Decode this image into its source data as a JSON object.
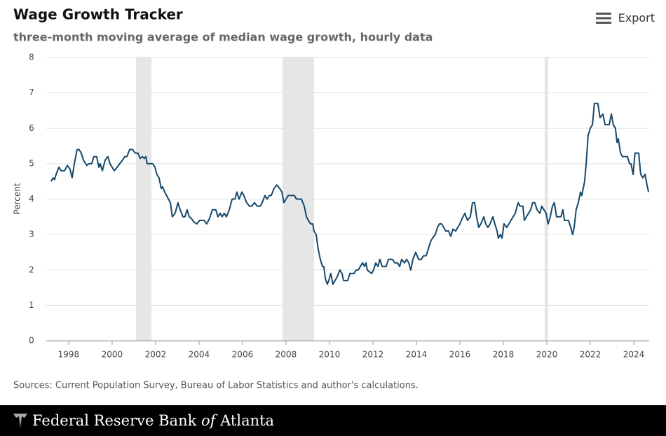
{
  "chart_data": {
    "type": "line",
    "title": "Wage Growth Tracker",
    "subtitle": "three-month moving average of median wage growth, hourly data",
    "y_label": "Percent",
    "color": "#16486b",
    "grid": true,
    "recession_color": "#e6e6e6",
    "recessions": [
      [
        2001.1,
        2001.81
      ],
      [
        2007.84,
        2009.29
      ],
      [
        2019.9,
        2020.06
      ]
    ],
    "xlim": [
      1996.97,
      2024.71
    ],
    "xticks": [
      1998,
      2000,
      2002,
      2004,
      2006,
      2008,
      2010,
      2012,
      2014,
      2016,
      2018,
      2020,
      2022,
      2024
    ],
    "ylim": [
      0,
      8
    ],
    "yticks": [
      0,
      1,
      2,
      3,
      4,
      5,
      6,
      7,
      8
    ],
    "x": [
      1997.19,
      1997.29,
      1997.35,
      1997.42,
      1997.55,
      1997.65,
      1997.81,
      1997.94,
      1998.06,
      1998.16,
      1998.26,
      1998.39,
      1998.48,
      1998.58,
      1998.68,
      1998.84,
      1998.94,
      1999.06,
      1999.16,
      1999.29,
      1999.39,
      1999.45,
      1999.55,
      1999.68,
      1999.81,
      1999.9,
      2000.1,
      2000.23,
      2000.35,
      2000.48,
      2000.58,
      2000.68,
      2000.81,
      2000.94,
      2001.06,
      2001.19,
      2001.29,
      2001.39,
      2001.48,
      2001.55,
      2001.61,
      2001.87,
      2001.97,
      2002.06,
      2002.16,
      2002.26,
      2002.32,
      2002.42,
      2002.55,
      2002.68,
      2002.77,
      2002.9,
      2003.03,
      2003.13,
      2003.26,
      2003.35,
      2003.45,
      2003.55,
      2003.65,
      2003.77,
      2003.9,
      2004.03,
      2004.23,
      2004.35,
      2004.48,
      2004.61,
      2004.77,
      2004.87,
      2004.97,
      2005.06,
      2005.16,
      2005.26,
      2005.39,
      2005.52,
      2005.65,
      2005.74,
      2005.84,
      2005.97,
      2006.06,
      2006.19,
      2006.32,
      2006.42,
      2006.55,
      2006.68,
      2006.81,
      2006.9,
      2007.03,
      2007.13,
      2007.23,
      2007.32,
      2007.45,
      2007.58,
      2007.71,
      2007.81,
      2007.9,
      2008.0,
      2008.1,
      2008.39,
      2008.48,
      2008.71,
      2008.84,
      2008.94,
      2009.03,
      2009.13,
      2009.23,
      2009.29,
      2009.39,
      2009.48,
      2009.58,
      2009.68,
      2009.74,
      2009.81,
      2009.9,
      2009.97,
      2010.06,
      2010.16,
      2010.26,
      2010.35,
      2010.48,
      2010.58,
      2010.65,
      2010.84,
      2010.94,
      2011.13,
      2011.23,
      2011.32,
      2011.42,
      2011.52,
      2011.61,
      2011.68,
      2011.74,
      2011.84,
      2011.94,
      2012.03,
      2012.13,
      2012.23,
      2012.32,
      2012.42,
      2012.61,
      2012.71,
      2012.9,
      2013.0,
      2013.13,
      2013.23,
      2013.32,
      2013.45,
      2013.55,
      2013.65,
      2013.74,
      2013.84,
      2013.97,
      2014.1,
      2014.23,
      2014.32,
      2014.45,
      2014.55,
      2014.65,
      2014.74,
      2014.87,
      2014.97,
      2015.06,
      2015.16,
      2015.26,
      2015.35,
      2015.48,
      2015.58,
      2015.68,
      2015.81,
      2015.9,
      2016.0,
      2016.1,
      2016.23,
      2016.35,
      2016.48,
      2016.58,
      2016.68,
      2016.77,
      2016.87,
      2016.97,
      2017.1,
      2017.19,
      2017.29,
      2017.39,
      2017.52,
      2017.61,
      2017.71,
      2017.77,
      2017.87,
      2017.94,
      2018.03,
      2018.16,
      2018.26,
      2018.35,
      2018.45,
      2018.55,
      2018.68,
      2018.77,
      2018.9,
      2018.97,
      2019.06,
      2019.16,
      2019.26,
      2019.35,
      2019.45,
      2019.55,
      2019.68,
      2019.77,
      2019.87,
      2019.97,
      2020.06,
      2020.16,
      2020.26,
      2020.35,
      2020.45,
      2020.55,
      2020.65,
      2020.74,
      2020.81,
      2021.0,
      2021.1,
      2021.19,
      2021.26,
      2021.35,
      2021.45,
      2021.55,
      2021.61,
      2021.74,
      2021.81,
      2021.9,
      2022.0,
      2022.1,
      2022.19,
      2022.35,
      2022.45,
      2022.58,
      2022.68,
      2022.87,
      2022.97,
      2023.06,
      2023.16,
      2023.23,
      2023.29,
      2023.39,
      2023.48,
      2023.71,
      2023.81,
      2023.87,
      2023.97,
      2024.06,
      2024.23,
      2024.32,
      2024.42,
      2024.52,
      2024.61,
      2024.68
    ],
    "values": [
      4.5,
      4.6,
      4.55,
      4.7,
      4.9,
      4.8,
      4.8,
      4.95,
      4.85,
      4.6,
      5.0,
      5.4,
      5.4,
      5.3,
      5.1,
      4.95,
      5.0,
      5.0,
      5.2,
      5.2,
      4.9,
      5.0,
      4.8,
      5.1,
      5.2,
      5.0,
      4.8,
      4.9,
      5.0,
      5.1,
      5.2,
      5.2,
      5.4,
      5.4,
      5.3,
      5.3,
      5.15,
      5.2,
      5.15,
      5.2,
      5.0,
      5.0,
      4.9,
      4.7,
      4.6,
      4.3,
      4.35,
      4.2,
      4.05,
      3.9,
      3.5,
      3.6,
      3.9,
      3.7,
      3.5,
      3.5,
      3.7,
      3.5,
      3.45,
      3.35,
      3.3,
      3.4,
      3.4,
      3.3,
      3.45,
      3.7,
      3.7,
      3.5,
      3.6,
      3.5,
      3.6,
      3.5,
      3.7,
      4.0,
      4.0,
      4.2,
      4.0,
      4.2,
      4.1,
      3.9,
      3.8,
      3.8,
      3.9,
      3.8,
      3.8,
      3.9,
      4.1,
      4.0,
      4.1,
      4.1,
      4.3,
      4.4,
      4.3,
      4.2,
      3.9,
      4.0,
      4.1,
      4.1,
      4.0,
      4.0,
      3.8,
      3.5,
      3.4,
      3.3,
      3.3,
      3.1,
      3.0,
      2.6,
      2.3,
      2.1,
      2.1,
      1.75,
      1.6,
      1.7,
      1.9,
      1.6,
      1.7,
      1.8,
      2.0,
      1.9,
      1.7,
      1.7,
      1.9,
      1.9,
      2.0,
      2.0,
      2.1,
      2.2,
      2.1,
      2.2,
      2.0,
      1.95,
      1.9,
      2.0,
      2.2,
      2.1,
      2.3,
      2.1,
      2.1,
      2.3,
      2.3,
      2.2,
      2.2,
      2.1,
      2.3,
      2.2,
      2.3,
      2.2,
      2.0,
      2.3,
      2.5,
      2.3,
      2.3,
      2.4,
      2.4,
      2.6,
      2.8,
      2.9,
      3.0,
      3.2,
      3.3,
      3.3,
      3.2,
      3.1,
      3.1,
      2.95,
      3.15,
      3.1,
      3.2,
      3.3,
      3.45,
      3.6,
      3.4,
      3.5,
      3.9,
      3.9,
      3.5,
      3.2,
      3.3,
      3.5,
      3.3,
      3.2,
      3.3,
      3.5,
      3.3,
      3.1,
      2.9,
      3.0,
      2.9,
      3.3,
      3.2,
      3.3,
      3.4,
      3.5,
      3.6,
      3.9,
      3.8,
      3.8,
      3.4,
      3.5,
      3.6,
      3.7,
      3.9,
      3.9,
      3.7,
      3.6,
      3.8,
      3.7,
      3.6,
      3.3,
      3.5,
      3.8,
      3.9,
      3.5,
      3.5,
      3.5,
      3.7,
      3.4,
      3.4,
      3.2,
      3.0,
      3.2,
      3.7,
      3.9,
      4.2,
      4.1,
      4.5,
      5.0,
      5.8,
      6.0,
      6.1,
      6.7,
      6.7,
      6.3,
      6.4,
      6.1,
      6.1,
      6.4,
      6.1,
      6.0,
      5.6,
      5.7,
      5.3,
      5.2,
      5.2,
      5.0,
      5.0,
      4.7,
      5.3,
      5.3,
      4.7,
      4.6,
      4.7,
      4.4,
      4.2
    ]
  },
  "export_label": "Export",
  "source": "Sources: Current Population Survey, Bureau of Labor Statistics and author's calculations.",
  "footer": {
    "name_start": "Federal Reserve Bank",
    "name_of": "of",
    "name_end": "Atlanta"
  }
}
